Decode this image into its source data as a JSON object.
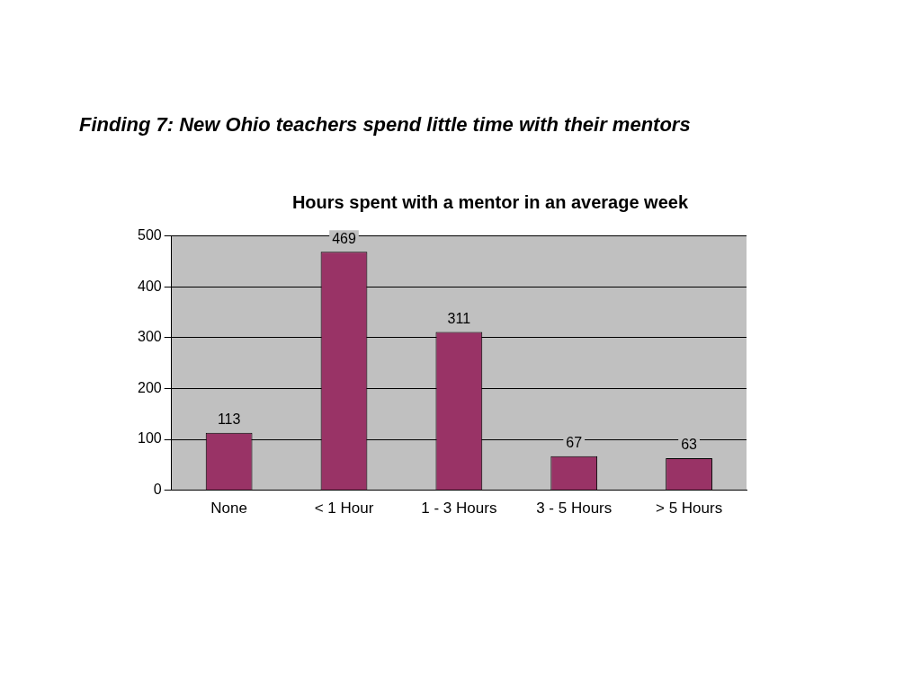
{
  "chart_data": {
    "type": "bar",
    "title": "Finding 7:  New Ohio teachers spend little time with their mentors",
    "subtitle": "Hours spent with a mentor in an average week",
    "categories": [
      "None",
      "< 1 Hour",
      "1 - 3 Hours",
      "3 - 5 Hours",
      "> 5 Hours"
    ],
    "values": [
      113,
      469,
      311,
      67,
      63
    ],
    "color": "#993366",
    "ylim": [
      0,
      500
    ],
    "yticks": [
      0,
      100,
      200,
      300,
      400,
      500
    ],
    "grid": "y",
    "data_labels": true,
    "legend": false
  }
}
